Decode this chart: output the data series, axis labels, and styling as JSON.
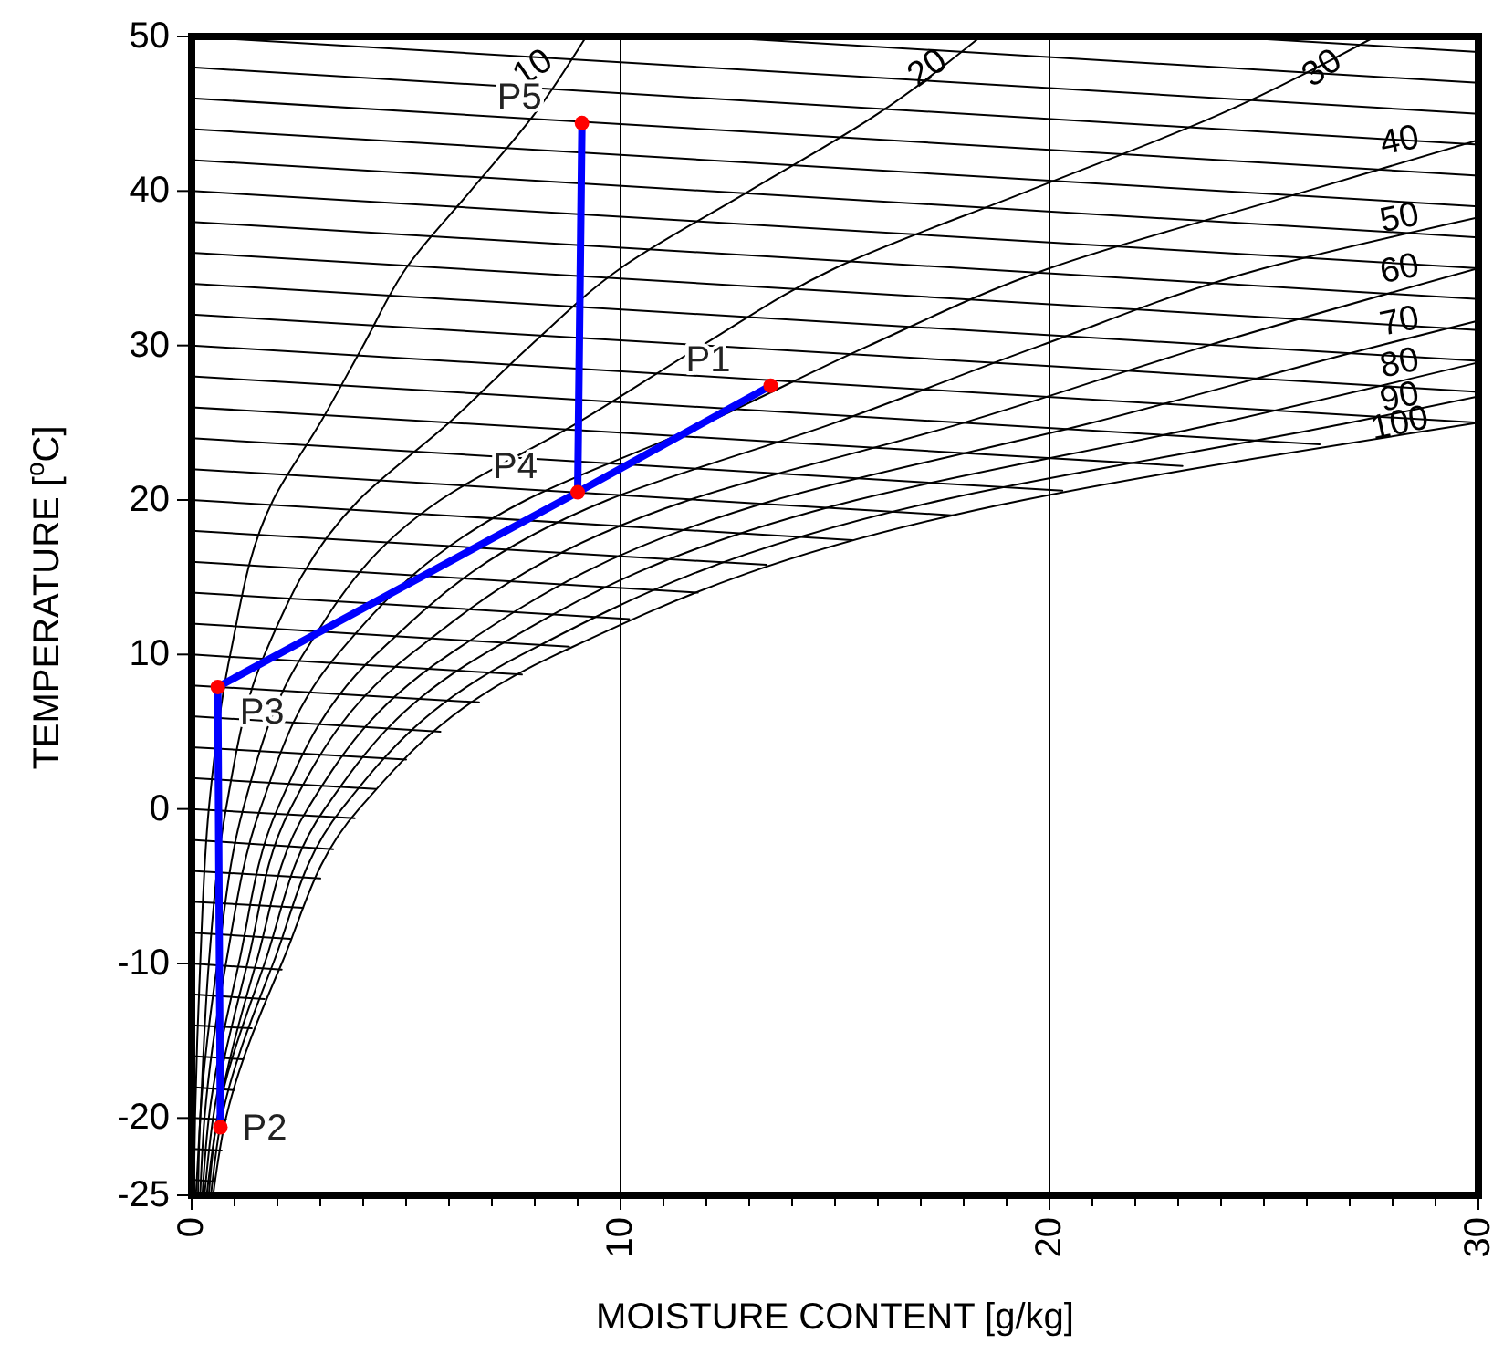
{
  "chart_data": {
    "type": "line",
    "xlabel": "MOISTURE CONTENT [g/kg]",
    "ylabel": "TEMPERATURE [$^{o}$C]",
    "xlim": [
      0,
      30
    ],
    "ylim": [
      -25,
      50
    ],
    "xticks": [
      0,
      {
        "value": 1,
        "label": null
      },
      {
        "value": 2,
        "label": null
      },
      {
        "value": 3,
        "label": null
      },
      {
        "value": 4,
        "label": null
      },
      {
        "value": 5,
        "label": null
      },
      {
        "value": 6,
        "label": null
      },
      {
        "value": 7,
        "label": null
      },
      {
        "value": 8,
        "label": null
      },
      {
        "value": 9,
        "label": null
      },
      10,
      {
        "value": 11,
        "label": null
      },
      {
        "value": 12,
        "label": null
      },
      {
        "value": 13,
        "label": null
      },
      {
        "value": 14,
        "label": null
      },
      {
        "value": 15,
        "label": null
      },
      {
        "value": 16,
        "label": null
      },
      {
        "value": 17,
        "label": null
      },
      {
        "value": 18,
        "label": null
      },
      {
        "value": 19,
        "label": null
      },
      20,
      {
        "value": 21,
        "label": null
      },
      {
        "value": 22,
        "label": null
      },
      {
        "value": 23,
        "label": null
      },
      {
        "value": 24,
        "label": null
      },
      {
        "value": 25,
        "label": null
      },
      {
        "value": 26,
        "label": null
      },
      {
        "value": 27,
        "label": null
      },
      {
        "value": 28,
        "label": null
      },
      {
        "value": 29,
        "label": null
      },
      30
    ],
    "yticks": [
      -25,
      -20,
      -10,
      0,
      10,
      20,
      30,
      40,
      50
    ],
    "grid": false,
    "legend": false,
    "ref_lines": [
      {
        "axis": "x",
        "value": 10,
        "color": "#000000"
      },
      {
        "axis": "x",
        "value": 20,
        "color": "#000000"
      }
    ],
    "series": [
      {
        "name": "10",
        "color": "#000000",
        "x": [
          0.05,
          0.08,
          0.2,
          0.4,
          0.9,
          1.9,
          3.0,
          4.0,
          5.0,
          6.5,
          8.0,
          9.2
        ],
        "values": [
          -25,
          -20,
          -10,
          0,
          10,
          20,
          25,
          30,
          35,
          40,
          45,
          50
        ]
      },
      {
        "name": "20",
        "color": "#000000",
        "x": [
          0.1,
          0.2,
          0.4,
          0.8,
          1.7,
          3.9,
          6.0,
          7.9,
          10.0,
          13.0,
          16.0,
          18.4
        ],
        "values": [
          -25,
          -20,
          -10,
          0,
          10,
          20,
          25,
          30,
          35,
          40,
          45,
          50
        ]
      },
      {
        "name": "30",
        "color": "#000000",
        "x": [
          0.15,
          0.2,
          0.6,
          1.2,
          2.6,
          5.8,
          9.0,
          11.9,
          15.0,
          19.5,
          24.0,
          27.6
        ],
        "values": [
          -25,
          -20,
          -10,
          0,
          10,
          20,
          25,
          30,
          35,
          40,
          45,
          50
        ]
      },
      {
        "name": "40",
        "color": "#000000",
        "x": [
          0.2,
          0.3,
          0.8,
          1.6,
          3.4,
          7.8,
          12.0,
          15.8,
          20.0,
          26.0,
          30
        ],
        "values": [
          -25,
          -20,
          -10,
          0,
          10,
          20,
          25,
          30,
          35,
          40,
          43.3
        ]
      },
      {
        "name": "50",
        "color": "#000000",
        "x": [
          0.25,
          0.4,
          1.1,
          2.0,
          4.3,
          9.7,
          15.0,
          19.8,
          25.0,
          30
        ],
        "values": [
          -25,
          -20,
          -10,
          0,
          10,
          20,
          25,
          30,
          35,
          38.3
        ]
      },
      {
        "name": "60",
        "color": "#000000",
        "x": [
          0.3,
          0.5,
          1.3,
          2.3,
          5.1,
          11.6,
          18.0,
          23.7,
          30
        ],
        "values": [
          -25,
          -20,
          -10,
          0,
          10,
          20,
          25,
          30,
          35
        ]
      },
      {
        "name": "70",
        "color": "#000000",
        "x": [
          0.35,
          0.6,
          1.5,
          2.7,
          6.0,
          13.6,
          21.0,
          27.7,
          30
        ],
        "values": [
          -25,
          -20,
          -10,
          0,
          10,
          20,
          25,
          30,
          31.6
        ]
      },
      {
        "name": "80",
        "color": "#000000",
        "x": [
          0.4,
          0.6,
          1.7,
          3.1,
          6.8,
          15.5,
          24.0,
          30
        ],
        "values": [
          -25,
          -20,
          -10,
          0,
          10,
          20,
          25,
          28.9
        ]
      },
      {
        "name": "90",
        "color": "#000000",
        "x": [
          0.45,
          0.7,
          1.9,
          3.5,
          7.7,
          17.5,
          27.0,
          30
        ],
        "values": [
          -25,
          -20,
          -10,
          0,
          10,
          20,
          25,
          26.7
        ]
      },
      {
        "name": "100",
        "color": "#000000",
        "x": [
          0.5,
          0.8,
          2.1,
          3.9,
          8.5,
          19.4,
          30
        ],
        "values": [
          -25,
          -20,
          -10,
          0,
          10,
          20,
          25
        ]
      },
      {
        "color": "#000000",
        "x": [
          0,
          0.5
        ],
        "values": [
          -24,
          -24.1
        ]
      },
      {
        "color": "#000000",
        "x": [
          0,
          0.7
        ],
        "values": [
          -22,
          -22.1
        ]
      },
      {
        "color": "#000000",
        "x": [
          0,
          0.8
        ],
        "values": [
          -20,
          -20.1
        ]
      },
      {
        "color": "#000000",
        "x": [
          0,
          1.0
        ],
        "values": [
          -18,
          -18.2
        ]
      },
      {
        "color": "#000000",
        "x": [
          0,
          1.2
        ],
        "values": [
          -16,
          -16.2
        ]
      },
      {
        "color": "#000000",
        "x": [
          0,
          1.4
        ],
        "values": [
          -14,
          -14.2
        ]
      },
      {
        "color": "#000000",
        "x": [
          0,
          1.7
        ],
        "values": [
          -12,
          -12.3
        ]
      },
      {
        "color": "#000000",
        "x": [
          0,
          2.1
        ],
        "values": [
          -10,
          -10.4
        ]
      },
      {
        "color": "#000000",
        "x": [
          0,
          2.3
        ],
        "values": [
          -8,
          -8.4
        ]
      },
      {
        "color": "#000000",
        "x": [
          0,
          2.6
        ],
        "values": [
          -6,
          -6.4
        ]
      },
      {
        "color": "#000000",
        "x": [
          0,
          3.0
        ],
        "values": [
          -4,
          -4.5
        ]
      },
      {
        "color": "#000000",
        "x": [
          0,
          3.3
        ],
        "values": [
          -2,
          -2.6
        ]
      },
      {
        "color": "#000000",
        "x": [
          0,
          3.8
        ],
        "values": [
          0,
          -0.6
        ]
      },
      {
        "color": "#000000",
        "x": [
          0,
          4.3
        ],
        "values": [
          2,
          1.3
        ]
      },
      {
        "color": "#000000",
        "x": [
          0,
          5.0
        ],
        "values": [
          4,
          3.2
        ]
      },
      {
        "color": "#000000",
        "x": [
          0,
          5.8
        ],
        "values": [
          6,
          5.0
        ]
      },
      {
        "color": "#000000",
        "x": [
          0,
          6.7
        ],
        "values": [
          8,
          6.9
        ]
      },
      {
        "color": "#000000",
        "x": [
          0,
          7.7
        ],
        "values": [
          10,
          8.7
        ]
      },
      {
        "color": "#000000",
        "x": [
          0,
          8.8
        ],
        "values": [
          12,
          10.5
        ]
      },
      {
        "color": "#000000",
        "x": [
          0,
          10.2
        ],
        "values": [
          14,
          12.3
        ]
      },
      {
        "color": "#000000",
        "x": [
          0,
          11.8
        ],
        "values": [
          16,
          14.0
        ]
      },
      {
        "color": "#000000",
        "x": [
          0,
          13.4
        ],
        "values": [
          18,
          15.8
        ]
      },
      {
        "color": "#000000",
        "x": [
          0,
          15.4
        ],
        "values": [
          20,
          17.4
        ]
      },
      {
        "color": "#000000",
        "x": [
          0,
          17.8
        ],
        "values": [
          22,
          19.0
        ]
      },
      {
        "color": "#000000",
        "x": [
          0,
          20.3
        ],
        "values": [
          24,
          20.6
        ]
      },
      {
        "color": "#000000",
        "x": [
          0,
          23.1
        ],
        "values": [
          26,
          22.2
        ]
      },
      {
        "color": "#000000",
        "x": [
          0,
          26.3
        ],
        "values": [
          28,
          23.6
        ]
      },
      {
        "color": "#000000",
        "x": [
          0,
          30
        ],
        "values": [
          30,
          25
        ]
      },
      {
        "color": "#000000",
        "x": [
          0,
          30
        ],
        "values": [
          32,
          27
        ]
      },
      {
        "color": "#000000",
        "x": [
          0,
          30
        ],
        "values": [
          34,
          29
        ]
      },
      {
        "color": "#000000",
        "x": [
          0,
          30
        ],
        "values": [
          36,
          31
        ]
      },
      {
        "color": "#000000",
        "x": [
          0,
          30
        ],
        "values": [
          38,
          33
        ]
      },
      {
        "color": "#000000",
        "x": [
          0,
          30
        ],
        "values": [
          40,
          35
        ]
      },
      {
        "color": "#000000",
        "x": [
          0,
          30
        ],
        "values": [
          42,
          37
        ]
      },
      {
        "color": "#000000",
        "x": [
          0,
          30
        ],
        "values": [
          44,
          39
        ]
      },
      {
        "color": "#000000",
        "x": [
          0,
          30
        ],
        "values": [
          46,
          41
        ]
      },
      {
        "color": "#000000",
        "x": [
          0,
          30
        ],
        "values": [
          48,
          43
        ]
      },
      {
        "color": "#000000",
        "x": [
          0,
          30
        ],
        "values": [
          50,
          45
        ]
      },
      {
        "color": "#000000",
        "x": [
          12,
          30
        ],
        "values": [
          50,
          47
        ]
      },
      {
        "color": "#000000",
        "x": [
          24,
          30
        ],
        "values": [
          50,
          49
        ]
      },
      {
        "color": "#0000ff",
        "x": [
          0.67,
          0.61,
          9.0,
          13.5
        ],
        "values": [
          -20.6,
          7.9,
          20.5,
          27.4
        ]
      },
      {
        "color": "#0000ff",
        "x": [
          9.0,
          9.1
        ],
        "values": [
          20.5,
          44.4
        ]
      },
      {
        "type": "scatter",
        "color": "#ff0000",
        "x": [
          13.5,
          0.67,
          0.61,
          9.0,
          9.1
        ],
        "values": [
          27.4,
          -20.6,
          7.9,
          20.5,
          44.4
        ]
      }
    ],
    "annotations": [
      {
        "text": "P1",
        "x": 13.5,
        "y": 27.4
      },
      {
        "text": "P2",
        "x": 0.67,
        "y": -20.6
      },
      {
        "text": "P3",
        "x": 0.61,
        "y": 7.9
      },
      {
        "text": "P4",
        "x": 9.0,
        "y": 20.5
      },
      {
        "text": "P5",
        "x": 9.1,
        "y": 44.4
      }
    ]
  }
}
